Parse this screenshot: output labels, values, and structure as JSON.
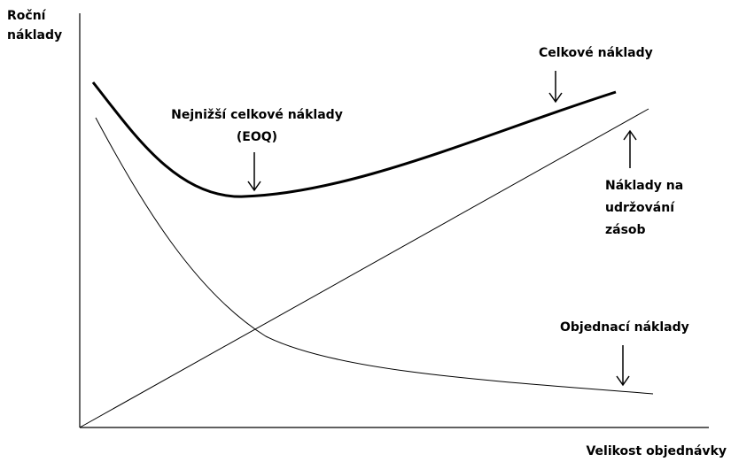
{
  "axes": {
    "y_label": [
      "Roční",
      "náklady"
    ],
    "x_label": "Velikost objednávky"
  },
  "annotations": {
    "total_cost": "Celkové náklady",
    "lowest_total": [
      "Nejnižší celkové náklady",
      "(EOQ)"
    ],
    "holding_cost": [
      "Náklady na",
      "udržování",
      "zásob"
    ],
    "ordering_cost": "Objednací náklady"
  }
}
